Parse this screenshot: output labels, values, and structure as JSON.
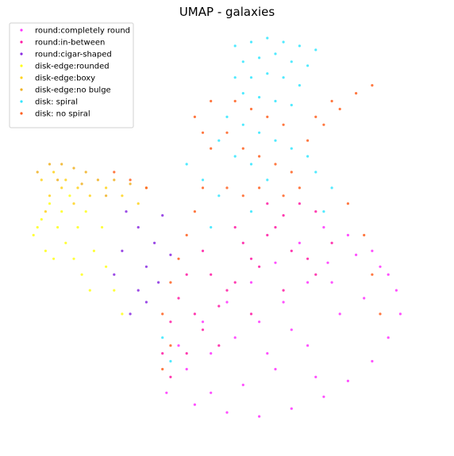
{
  "chart_data": {
    "type": "scatter",
    "title": "UMAP - galaxies",
    "xlabel": "",
    "ylabel": "",
    "axes_visible": false,
    "grid": false,
    "legend_position": "top-left",
    "series": [
      {
        "name": "round:completely round",
        "color": "#ff33ff",
        "points": [
          [
            0.35,
            0.1
          ],
          [
            0.42,
            0.07
          ],
          [
            0.5,
            0.05
          ],
          [
            0.58,
            0.04
          ],
          [
            0.66,
            0.06
          ],
          [
            0.74,
            0.09
          ],
          [
            0.8,
            0.13
          ],
          [
            0.86,
            0.18
          ],
          [
            0.9,
            0.24
          ],
          [
            0.93,
            0.3
          ],
          [
            0.92,
            0.36
          ],
          [
            0.88,
            0.42
          ],
          [
            0.82,
            0.45
          ],
          [
            0.75,
            0.43
          ],
          [
            0.7,
            0.38
          ],
          [
            0.64,
            0.33
          ],
          [
            0.58,
            0.28
          ],
          [
            0.52,
            0.24
          ],
          [
            0.46,
            0.2
          ],
          [
            0.4,
            0.16
          ],
          [
            0.38,
            0.22
          ],
          [
            0.44,
            0.28
          ],
          [
            0.5,
            0.33
          ],
          [
            0.56,
            0.38
          ],
          [
            0.62,
            0.43
          ],
          [
            0.68,
            0.48
          ],
          [
            0.74,
            0.52
          ],
          [
            0.8,
            0.5
          ],
          [
            0.86,
            0.46
          ],
          [
            0.9,
            0.4
          ],
          [
            0.78,
            0.3
          ],
          [
            0.7,
            0.22
          ],
          [
            0.62,
            0.16
          ],
          [
            0.54,
            0.12
          ],
          [
            0.46,
            0.1
          ],
          [
            0.84,
            0.34
          ],
          [
            0.76,
            0.38
          ],
          [
            0.66,
            0.26
          ],
          [
            0.6,
            0.2
          ],
          [
            0.72,
            0.14
          ]
        ]
      },
      {
        "name": "round:in-between",
        "color": "#ff1aa3",
        "points": [
          [
            0.36,
            0.14
          ],
          [
            0.4,
            0.2
          ],
          [
            0.44,
            0.26
          ],
          [
            0.48,
            0.32
          ],
          [
            0.52,
            0.38
          ],
          [
            0.56,
            0.44
          ],
          [
            0.6,
            0.5
          ],
          [
            0.64,
            0.55
          ],
          [
            0.68,
            0.58
          ],
          [
            0.72,
            0.56
          ],
          [
            0.76,
            0.48
          ],
          [
            0.66,
            0.46
          ],
          [
            0.58,
            0.42
          ],
          [
            0.5,
            0.36
          ],
          [
            0.42,
            0.3
          ],
          [
            0.38,
            0.34
          ],
          [
            0.46,
            0.4
          ],
          [
            0.54,
            0.48
          ],
          [
            0.62,
            0.52
          ],
          [
            0.7,
            0.44
          ],
          [
            0.48,
            0.22
          ],
          [
            0.56,
            0.3
          ],
          [
            0.64,
            0.36
          ],
          [
            0.72,
            0.4
          ],
          [
            0.4,
            0.4
          ],
          [
            0.44,
            0.46
          ],
          [
            0.52,
            0.52
          ],
          [
            0.6,
            0.58
          ],
          [
            0.36,
            0.28
          ],
          [
            0.34,
            0.2
          ]
        ]
      },
      {
        "name": "round:cigar-shaped",
        "color": "#8a2be2",
        "points": [
          [
            0.26,
            0.3
          ],
          [
            0.28,
            0.36
          ],
          [
            0.3,
            0.42
          ],
          [
            0.32,
            0.48
          ],
          [
            0.34,
            0.55
          ],
          [
            0.28,
            0.52
          ],
          [
            0.24,
            0.46
          ],
          [
            0.22,
            0.4
          ],
          [
            0.3,
            0.33
          ],
          [
            0.36,
            0.45
          ],
          [
            0.25,
            0.56
          ],
          [
            0.33,
            0.38
          ]
        ]
      },
      {
        "name": "disk-edge:rounded",
        "color": "#ffff1a",
        "points": [
          [
            0.02,
            0.5
          ],
          [
            0.04,
            0.54
          ],
          [
            0.06,
            0.58
          ],
          [
            0.08,
            0.52
          ],
          [
            0.1,
            0.48
          ],
          [
            0.12,
            0.44
          ],
          [
            0.14,
            0.4
          ],
          [
            0.16,
            0.36
          ],
          [
            0.05,
            0.46
          ],
          [
            0.09,
            0.56
          ],
          [
            0.13,
            0.52
          ],
          [
            0.17,
            0.46
          ],
          [
            0.2,
            0.42
          ],
          [
            0.22,
            0.36
          ],
          [
            0.11,
            0.6
          ],
          [
            0.07,
            0.44
          ],
          [
            0.15,
            0.56
          ],
          [
            0.19,
            0.52
          ],
          [
            0.03,
            0.52
          ],
          [
            0.24,
            0.3
          ]
        ]
      },
      {
        "name": "disk-edge:boxy",
        "color": "#ffd21a",
        "points": [
          [
            0.04,
            0.64
          ],
          [
            0.07,
            0.66
          ],
          [
            0.1,
            0.64
          ],
          [
            0.13,
            0.62
          ],
          [
            0.16,
            0.6
          ],
          [
            0.06,
            0.6
          ],
          [
            0.09,
            0.62
          ],
          [
            0.12,
            0.58
          ],
          [
            0.2,
            0.62
          ],
          [
            0.24,
            0.6
          ],
          [
            0.28,
            0.58
          ],
          [
            0.05,
            0.56
          ]
        ]
      },
      {
        "name": "disk-edge:no bulge",
        "color": "#f0b020",
        "points": [
          [
            0.03,
            0.66
          ],
          [
            0.06,
            0.68
          ],
          [
            0.09,
            0.68
          ],
          [
            0.12,
            0.67
          ],
          [
            0.15,
            0.66
          ],
          [
            0.18,
            0.64
          ],
          [
            0.22,
            0.64
          ],
          [
            0.26,
            0.63
          ],
          [
            0.3,
            0.62
          ],
          [
            0.08,
            0.64
          ],
          [
            0.14,
            0.63
          ],
          [
            0.2,
            0.6
          ]
        ]
      },
      {
        "name": "disk: spiral",
        "color": "#33e6ff",
        "points": [
          [
            0.52,
            0.98
          ],
          [
            0.56,
            0.99
          ],
          [
            0.6,
            1.0
          ],
          [
            0.64,
            0.99
          ],
          [
            0.68,
            0.98
          ],
          [
            0.72,
            0.97
          ],
          [
            0.54,
            0.94
          ],
          [
            0.58,
            0.95
          ],
          [
            0.62,
            0.96
          ],
          [
            0.66,
            0.94
          ],
          [
            0.7,
            0.93
          ],
          [
            0.52,
            0.9
          ],
          [
            0.56,
            0.9
          ],
          [
            0.6,
            0.91
          ],
          [
            0.64,
            0.9
          ],
          [
            0.68,
            0.88
          ],
          [
            0.54,
            0.86
          ],
          [
            0.58,
            0.85
          ],
          [
            0.62,
            0.84
          ],
          [
            0.66,
            0.83
          ],
          [
            0.5,
            0.8
          ],
          [
            0.54,
            0.78
          ],
          [
            0.58,
            0.76
          ],
          [
            0.62,
            0.74
          ],
          [
            0.66,
            0.72
          ],
          [
            0.7,
            0.7
          ],
          [
            0.48,
            0.74
          ],
          [
            0.52,
            0.7
          ],
          [
            0.56,
            0.68
          ],
          [
            0.6,
            0.64
          ],
          [
            0.4,
            0.68
          ],
          [
            0.44,
            0.64
          ],
          [
            0.48,
            0.6
          ],
          [
            0.72,
            0.66
          ],
          [
            0.76,
            0.62
          ],
          [
            0.74,
            0.56
          ],
          [
            0.36,
            0.18
          ],
          [
            0.34,
            0.24
          ],
          [
            0.46,
            0.52
          ],
          [
            0.56,
            0.56
          ]
        ]
      },
      {
        "name": "disk: no spiral",
        "color": "#ff6020",
        "points": [
          [
            0.42,
            0.8
          ],
          [
            0.44,
            0.76
          ],
          [
            0.46,
            0.72
          ],
          [
            0.5,
            0.76
          ],
          [
            0.54,
            0.72
          ],
          [
            0.58,
            0.7
          ],
          [
            0.62,
            0.68
          ],
          [
            0.66,
            0.66
          ],
          [
            0.7,
            0.74
          ],
          [
            0.74,
            0.78
          ],
          [
            0.78,
            0.82
          ],
          [
            0.82,
            0.86
          ],
          [
            0.86,
            0.88
          ],
          [
            0.76,
            0.84
          ],
          [
            0.72,
            0.8
          ],
          [
            0.64,
            0.78
          ],
          [
            0.6,
            0.8
          ],
          [
            0.56,
            0.82
          ],
          [
            0.52,
            0.84
          ],
          [
            0.46,
            0.84
          ],
          [
            0.44,
            0.62
          ],
          [
            0.42,
            0.56
          ],
          [
            0.4,
            0.5
          ],
          [
            0.38,
            0.44
          ],
          [
            0.36,
            0.38
          ],
          [
            0.34,
            0.3
          ],
          [
            0.36,
            0.22
          ],
          [
            0.34,
            0.16
          ],
          [
            0.5,
            0.62
          ],
          [
            0.54,
            0.6
          ],
          [
            0.58,
            0.62
          ],
          [
            0.3,
            0.62
          ],
          [
            0.26,
            0.64
          ],
          [
            0.22,
            0.66
          ],
          [
            0.64,
            0.6
          ],
          [
            0.68,
            0.62
          ],
          [
            0.8,
            0.58
          ],
          [
            0.84,
            0.5
          ],
          [
            0.86,
            0.4
          ],
          [
            0.88,
            0.3
          ]
        ]
      }
    ]
  }
}
